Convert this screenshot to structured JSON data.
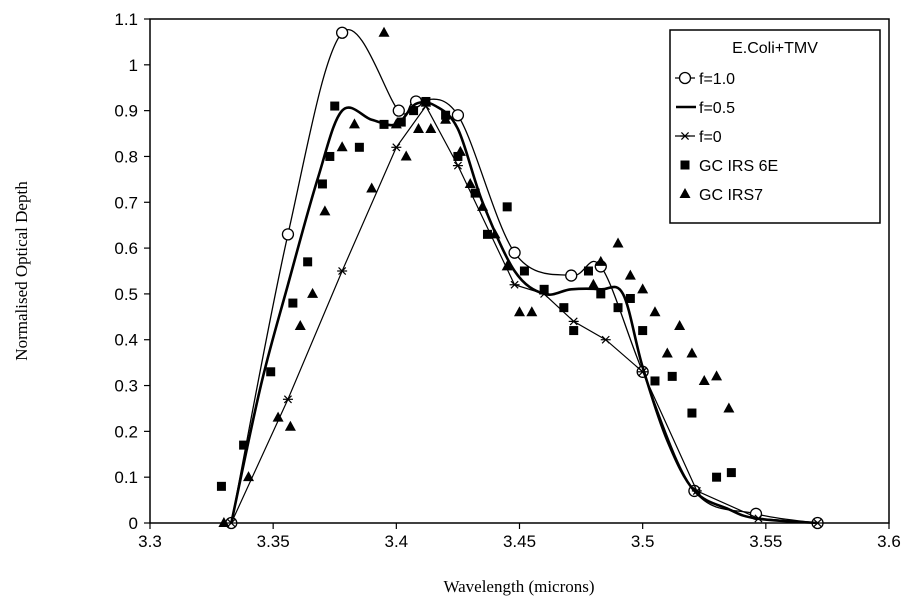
{
  "chart_data": {
    "type": "line",
    "xlabel": "Wavelength (microns)",
    "ylabel": "Normalised Optical Depth",
    "xlim": [
      3.3,
      3.6
    ],
    "ylim": [
      0,
      1.1
    ],
    "x_ticks": [
      "3.3",
      "3.35",
      "3.4",
      "3.45",
      "3.5",
      "3.55",
      "3.6"
    ],
    "y_ticks": [
      "0",
      "0.1",
      "0.2",
      "0.3",
      "0.4",
      "0.5",
      "0.6",
      "0.7",
      "0.8",
      "0.9",
      "1",
      "1.1"
    ],
    "grid": false,
    "legend": {
      "position": "top-right",
      "title": "E.Coli+TMV",
      "entries": [
        "f=1.0",
        "f=0.5",
        "f=0",
        "GC IRS 6E",
        "GC IRS7"
      ]
    },
    "series": [
      {
        "name": "f=1.0",
        "style": "line-open-circle",
        "points": [
          [
            3.333,
            0
          ],
          [
            3.356,
            0.63
          ],
          [
            3.378,
            1.07
          ],
          [
            3.401,
            0.9
          ],
          [
            3.408,
            0.92
          ],
          [
            3.425,
            0.89
          ],
          [
            3.448,
            0.59
          ],
          [
            3.471,
            0.54
          ],
          [
            3.483,
            0.56
          ],
          [
            3.5,
            0.33
          ],
          [
            3.521,
            0.07
          ],
          [
            3.546,
            0.02
          ],
          [
            3.571,
            0
          ]
        ]
      },
      {
        "name": "f=0.5",
        "style": "thick-line",
        "points": [
          [
            3.333,
            0
          ],
          [
            3.345,
            0.3
          ],
          [
            3.356,
            0.52
          ],
          [
            3.368,
            0.75
          ],
          [
            3.378,
            0.9
          ],
          [
            3.39,
            0.88
          ],
          [
            3.4,
            0.87
          ],
          [
            3.408,
            0.915
          ],
          [
            3.416,
            0.91
          ],
          [
            3.425,
            0.86
          ],
          [
            3.435,
            0.7
          ],
          [
            3.448,
            0.55
          ],
          [
            3.46,
            0.5
          ],
          [
            3.471,
            0.51
          ],
          [
            3.483,
            0.51
          ],
          [
            3.492,
            0.5
          ],
          [
            3.5,
            0.34
          ],
          [
            3.51,
            0.18
          ],
          [
            3.521,
            0.07
          ],
          [
            3.535,
            0.03
          ],
          [
            3.546,
            0.01
          ],
          [
            3.571,
            0
          ]
        ]
      },
      {
        "name": "f=0",
        "style": "line-star",
        "points": [
          [
            3.333,
            0
          ],
          [
            3.356,
            0.27
          ],
          [
            3.378,
            0.55
          ],
          [
            3.4,
            0.82
          ],
          [
            3.412,
            0.91
          ],
          [
            3.425,
            0.78
          ],
          [
            3.448,
            0.52
          ],
          [
            3.46,
            0.5
          ],
          [
            3.472,
            0.44
          ],
          [
            3.485,
            0.4
          ],
          [
            3.5,
            0.33
          ],
          [
            3.522,
            0.07
          ],
          [
            3.547,
            0.01
          ],
          [
            3.571,
            0
          ]
        ]
      },
      {
        "name": "GC IRS 6E",
        "style": "filled-square",
        "points": [
          [
            3.329,
            0.08
          ],
          [
            3.338,
            0.17
          ],
          [
            3.349,
            0.33
          ],
          [
            3.358,
            0.48
          ],
          [
            3.364,
            0.57
          ],
          [
            3.37,
            0.74
          ],
          [
            3.373,
            0.8
          ],
          [
            3.375,
            0.91
          ],
          [
            3.385,
            0.82
          ],
          [
            3.395,
            0.87
          ],
          [
            3.402,
            0.875
          ],
          [
            3.407,
            0.9
          ],
          [
            3.412,
            0.92
          ],
          [
            3.42,
            0.89
          ],
          [
            3.425,
            0.8
          ],
          [
            3.432,
            0.72
          ],
          [
            3.437,
            0.63
          ],
          [
            3.445,
            0.69
          ],
          [
            3.452,
            0.55
          ],
          [
            3.46,
            0.51
          ],
          [
            3.468,
            0.47
          ],
          [
            3.472,
            0.42
          ],
          [
            3.478,
            0.55
          ],
          [
            3.483,
            0.5
          ],
          [
            3.49,
            0.47
          ],
          [
            3.495,
            0.49
          ],
          [
            3.5,
            0.42
          ],
          [
            3.505,
            0.31
          ],
          [
            3.512,
            0.32
          ],
          [
            3.52,
            0.24
          ],
          [
            3.53,
            0.1
          ],
          [
            3.536,
            0.11
          ]
        ]
      },
      {
        "name": "GC IRS7",
        "style": "filled-triangle",
        "points": [
          [
            3.33,
            0
          ],
          [
            3.34,
            0.1
          ],
          [
            3.352,
            0.23
          ],
          [
            3.357,
            0.21
          ],
          [
            3.361,
            0.43
          ],
          [
            3.366,
            0.5
          ],
          [
            3.371,
            0.68
          ],
          [
            3.378,
            0.82
          ],
          [
            3.383,
            0.87
          ],
          [
            3.39,
            0.73
          ],
          [
            3.395,
            1.07
          ],
          [
            3.4,
            0.87
          ],
          [
            3.404,
            0.8
          ],
          [
            3.409,
            0.86
          ],
          [
            3.414,
            0.86
          ],
          [
            3.42,
            0.88
          ],
          [
            3.426,
            0.81
          ],
          [
            3.43,
            0.74
          ],
          [
            3.435,
            0.69
          ],
          [
            3.44,
            0.63
          ],
          [
            3.445,
            0.56
          ],
          [
            3.45,
            0.46
          ],
          [
            3.455,
            0.46
          ],
          [
            3.48,
            0.52
          ],
          [
            3.483,
            0.57
          ],
          [
            3.49,
            0.61
          ],
          [
            3.495,
            0.54
          ],
          [
            3.5,
            0.51
          ],
          [
            3.505,
            0.46
          ],
          [
            3.51,
            0.37
          ],
          [
            3.515,
            0.43
          ],
          [
            3.52,
            0.37
          ],
          [
            3.525,
            0.31
          ],
          [
            3.53,
            0.32
          ],
          [
            3.535,
            0.25
          ]
        ]
      }
    ]
  }
}
